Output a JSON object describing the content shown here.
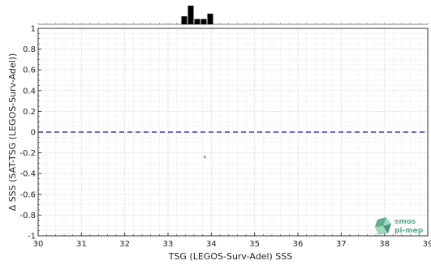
{
  "chart_data": {
    "type": "scatter",
    "xlabel": "TSG (LEGOS-Surv-Adel) SSS",
    "ylabel": "Δ SSS (SAT-TSG (LEGOS-Surv-Adel))",
    "xlim": [
      30,
      39
    ],
    "ylim": [
      -1,
      1
    ],
    "x_ticks": [
      "30",
      "31",
      "32",
      "33",
      "34",
      "35",
      "36",
      "37",
      "38",
      "39"
    ],
    "y_ticks": [
      "1",
      "0.8",
      "0.6",
      "0.4",
      "0.2",
      "0",
      "-0.2",
      "-0.4",
      "-0.6",
      "-0.8",
      "-1"
    ],
    "grid": true,
    "reference_line": {
      "y": 0,
      "style": "dashed",
      "color": "#3a3acc"
    },
    "points": [
      {
        "x": 33.85,
        "y": -0.24
      }
    ],
    "histogram": {
      "bins": [
        {
          "x0": 33.3,
          "x1": 33.45,
          "count": 3
        },
        {
          "x0": 33.45,
          "x1": 33.6,
          "count": 7
        },
        {
          "x0": 33.6,
          "x1": 33.75,
          "count": 2
        },
        {
          "x0": 33.75,
          "x1": 33.9,
          "count": 2
        },
        {
          "x0": 33.9,
          "x1": 34.05,
          "count": 4
        }
      ],
      "color": "#000000"
    }
  },
  "logo": {
    "line1": "smos",
    "line2": "pi-mep",
    "color": "#5aaa88"
  }
}
